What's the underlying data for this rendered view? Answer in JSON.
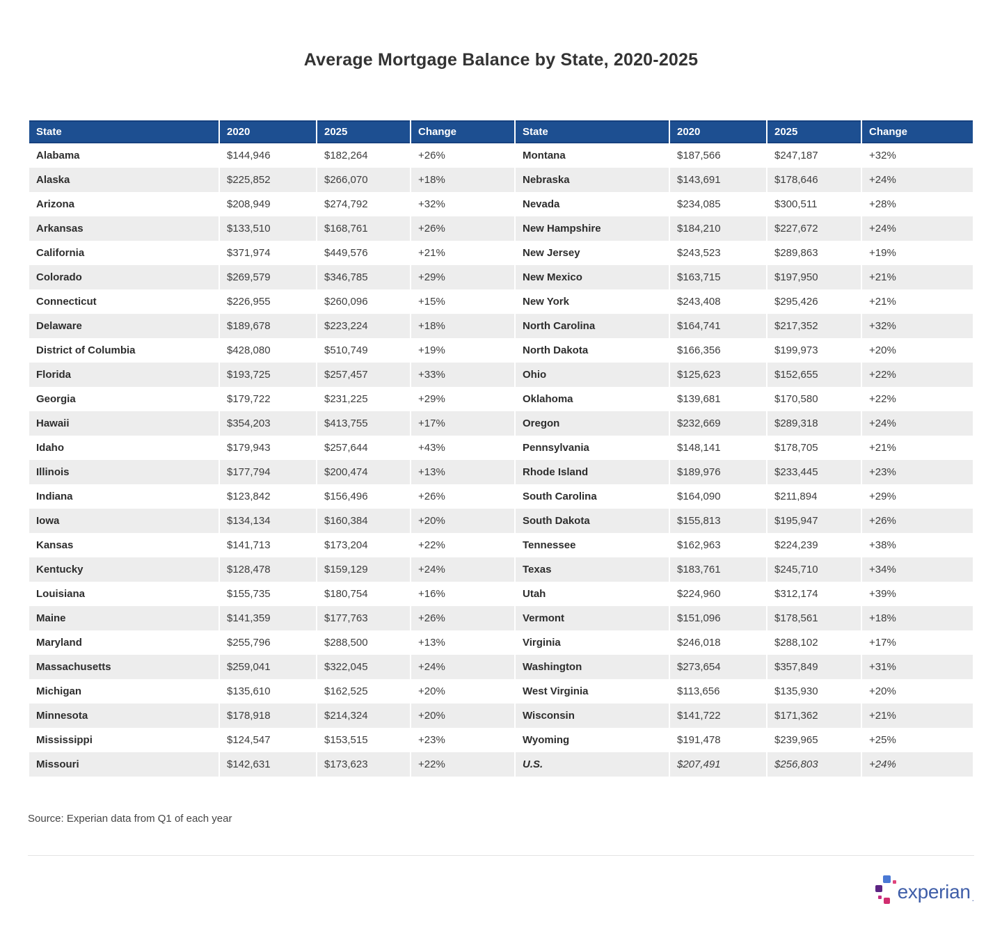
{
  "title": "Average Mortgage Balance by State, 2020-2025",
  "chart_data": {
    "type": "table",
    "title": "Average Mortgage Balance by State, 2020-2025",
    "columns": [
      "State",
      "2020",
      "2025",
      "Change",
      "State",
      "2020",
      "2025",
      "Change"
    ],
    "rows": [
      [
        "Alabama",
        "$144,946",
        "$182,264",
        "+26%",
        "Montana",
        "$187,566",
        "$247,187",
        "+32%"
      ],
      [
        "Alaska",
        "$225,852",
        "$266,070",
        "+18%",
        "Nebraska",
        "$143,691",
        "$178,646",
        "+24%"
      ],
      [
        "Arizona",
        "$208,949",
        "$274,792",
        "+32%",
        "Nevada",
        "$234,085",
        "$300,511",
        "+28%"
      ],
      [
        "Arkansas",
        "$133,510",
        "$168,761",
        "+26%",
        "New Hampshire",
        "$184,210",
        "$227,672",
        "+24%"
      ],
      [
        "California",
        "$371,974",
        "$449,576",
        "+21%",
        "New Jersey",
        "$243,523",
        "$289,863",
        "+19%"
      ],
      [
        "Colorado",
        "$269,579",
        "$346,785",
        "+29%",
        "New Mexico",
        "$163,715",
        "$197,950",
        "+21%"
      ],
      [
        "Connecticut",
        "$226,955",
        "$260,096",
        "+15%",
        "New York",
        "$243,408",
        "$295,426",
        "+21%"
      ],
      [
        "Delaware",
        "$189,678",
        "$223,224",
        "+18%",
        "North Carolina",
        "$164,741",
        "$217,352",
        "+32%"
      ],
      [
        "District of Columbia",
        "$428,080",
        "$510,749",
        "+19%",
        "North Dakota",
        "$166,356",
        "$199,973",
        "+20%"
      ],
      [
        "Florida",
        "$193,725",
        "$257,457",
        "+33%",
        "Ohio",
        "$125,623",
        "$152,655",
        "+22%"
      ],
      [
        "Georgia",
        "$179,722",
        "$231,225",
        "+29%",
        "Oklahoma",
        "$139,681",
        "$170,580",
        "+22%"
      ],
      [
        "Hawaii",
        "$354,203",
        "$413,755",
        "+17%",
        "Oregon",
        "$232,669",
        "$289,318",
        "+24%"
      ],
      [
        "Idaho",
        "$179,943",
        "$257,644",
        "+43%",
        "Pennsylvania",
        "$148,141",
        "$178,705",
        "+21%"
      ],
      [
        "Illinois",
        "$177,794",
        "$200,474",
        "+13%",
        "Rhode Island",
        "$189,976",
        "$233,445",
        "+23%"
      ],
      [
        "Indiana",
        "$123,842",
        "$156,496",
        "+26%",
        "South Carolina",
        "$164,090",
        "$211,894",
        "+29%"
      ],
      [
        "Iowa",
        "$134,134",
        "$160,384",
        "+20%",
        "South Dakota",
        "$155,813",
        "$195,947",
        "+26%"
      ],
      [
        "Kansas",
        "$141,713",
        "$173,204",
        "+22%",
        "Tennessee",
        "$162,963",
        "$224,239",
        "+38%"
      ],
      [
        "Kentucky",
        "$128,478",
        "$159,129",
        "+24%",
        "Texas",
        "$183,761",
        "$245,710",
        "+34%"
      ],
      [
        "Louisiana",
        "$155,735",
        "$180,754",
        "+16%",
        "Utah",
        "$224,960",
        "$312,174",
        "+39%"
      ],
      [
        "Maine",
        "$141,359",
        "$177,763",
        "+26%",
        "Vermont",
        "$151,096",
        "$178,561",
        "+18%"
      ],
      [
        "Maryland",
        "$255,796",
        "$288,500",
        "+13%",
        "Virginia",
        "$246,018",
        "$288,102",
        "+17%"
      ],
      [
        "Massachusetts",
        "$259,041",
        "$322,045",
        "+24%",
        "Washington",
        "$273,654",
        "$357,849",
        "+31%"
      ],
      [
        "Michigan",
        "$135,610",
        "$162,525",
        "+20%",
        "West Virginia",
        "$113,656",
        "$135,930",
        "+20%"
      ],
      [
        "Minnesota",
        "$178,918",
        "$214,324",
        "+20%",
        "Wisconsin",
        "$141,722",
        "$171,362",
        "+21%"
      ],
      [
        "Mississippi",
        "$124,547",
        "$153,515",
        "+23%",
        "Wyoming",
        "$191,478",
        "$239,965",
        "+25%"
      ],
      [
        "Missouri",
        "$142,631",
        "$173,623",
        "+22%",
        "U.S.",
        "$207,491",
        "$256,803",
        "+24%"
      ]
    ],
    "italic_entry": "U.S.",
    "layout_hints": {
      "two_column_groups": true,
      "striped_rows": true,
      "header_bg": "#1d4f91",
      "stripe_color": "#ededed"
    }
  },
  "footer": {
    "source": "Source: Experian data from Q1 of each year",
    "logo_text": "experian",
    "logo_tm": "."
  },
  "colors": {
    "header_blue": "#1d4f91",
    "row_stripe": "#ededed",
    "logo_blue_text": "#3f5ea8",
    "logo_block_blue": "#4a79d4",
    "logo_block_purple": "#5c2483",
    "logo_block_magenta": "#d12d6f",
    "logo_dot_pink": "#e0447c"
  }
}
